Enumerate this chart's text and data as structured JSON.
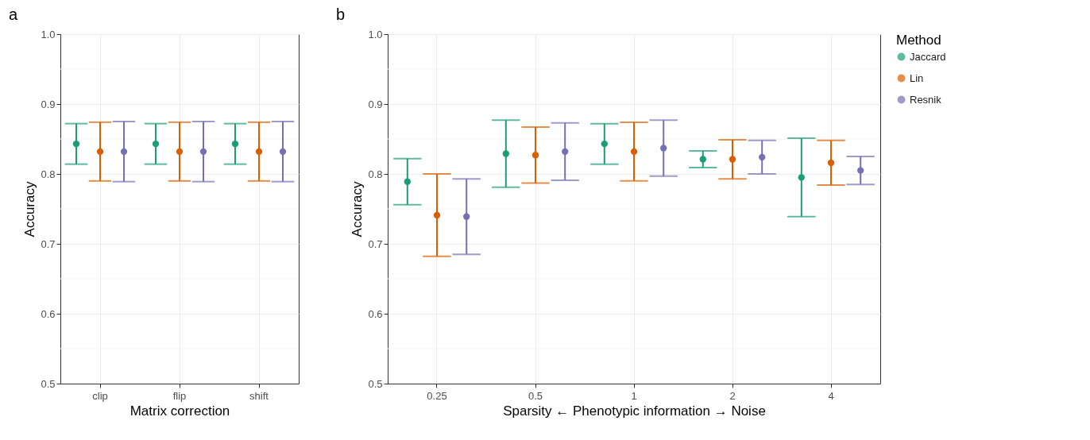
{
  "chart_data": [
    {
      "type": "scatter",
      "title": "a",
      "xlabel": "Matrix correction",
      "ylabel": "Accuracy",
      "categories": [
        "clip",
        "flip",
        "shift"
      ],
      "marker": "circle",
      "grid": true,
      "legend": false,
      "ylim": [
        0.5,
        1.0
      ],
      "yticks": [
        0.5,
        0.6,
        0.7,
        0.8,
        0.9,
        {
          "value": 1.0,
          "label": "1.0"
        }
      ],
      "series": [
        {
          "color": "#1b9e77",
          "values": [
            0.843,
            0.843,
            0.843
          ],
          "errors": [
            [
              0.814,
              0.872
            ],
            [
              0.814,
              0.872
            ],
            [
              0.814,
              0.872
            ]
          ]
        },
        {
          "color": "#d95f02",
          "values": [
            0.832,
            0.832,
            0.832
          ],
          "errors": [
            [
              0.79,
              0.874
            ],
            [
              0.79,
              0.874
            ],
            [
              0.79,
              0.874
            ]
          ]
        },
        {
          "color": "#7570b3",
          "values": [
            0.832,
            0.832,
            0.832
          ],
          "errors": [
            [
              0.789,
              0.875
            ],
            [
              0.789,
              0.875
            ],
            [
              0.789,
              0.875
            ]
          ]
        }
      ]
    },
    {
      "type": "scatter",
      "title": "b",
      "xlabel": "Sparsity ← Phenotypic information → Noise",
      "ylabel": "Accuracy",
      "legend_title": "Method",
      "categories": [
        "0.25",
        "0.5",
        "1",
        "2",
        "4"
      ],
      "marker": "circle",
      "grid": true,
      "legend": "right",
      "ylim": [
        0.5,
        1.0
      ],
      "yticks": [
        0.5,
        0.6,
        0.7,
        0.8,
        0.9,
        {
          "value": 1.0,
          "label": "1.0"
        }
      ],
      "series": [
        {
          "name": "Jaccard",
          "color": "#1b9e77",
          "values": [
            0.789,
            0.829,
            0.843,
            0.821,
            0.795
          ],
          "errors": [
            [
              0.756,
              0.822
            ],
            [
              0.781,
              0.877
            ],
            [
              0.814,
              0.872
            ],
            [
              0.809,
              0.833
            ],
            [
              0.739,
              0.851
            ]
          ]
        },
        {
          "name": "Lin",
          "color": "#d95f02",
          "values": [
            0.741,
            0.827,
            0.832,
            0.821,
            0.816
          ],
          "errors": [
            [
              0.682,
              0.8
            ],
            [
              0.787,
              0.867
            ],
            [
              0.79,
              0.874
            ],
            [
              0.793,
              0.849
            ],
            [
              0.784,
              0.848
            ]
          ]
        },
        {
          "name": "Resnik",
          "color": "#7570b3",
          "values": [
            0.739,
            0.832,
            0.837,
            0.824,
            0.805
          ],
          "errors": [
            [
              0.685,
              0.793
            ],
            [
              0.791,
              0.873
            ],
            [
              0.797,
              0.877
            ],
            [
              0.8,
              0.848
            ],
            [
              0.785,
              0.825
            ]
          ]
        }
      ]
    }
  ]
}
